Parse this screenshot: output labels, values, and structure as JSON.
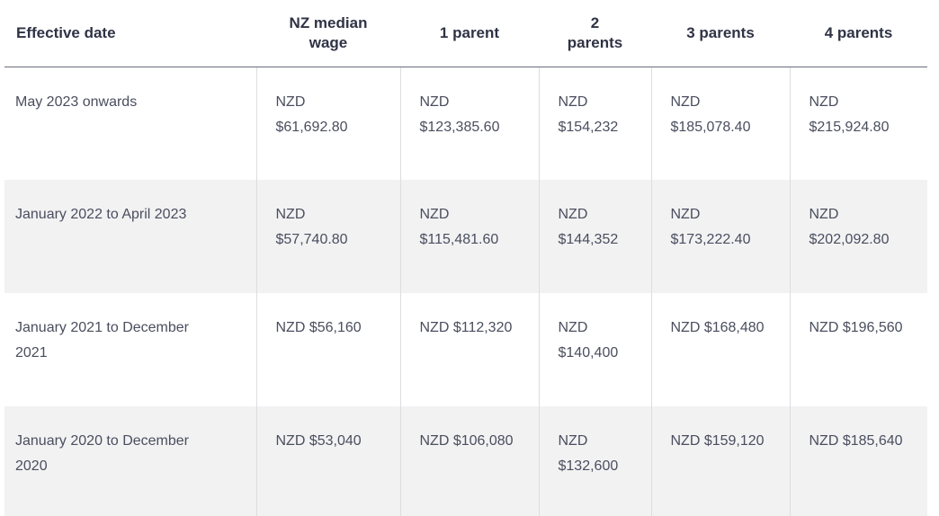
{
  "table": {
    "headers": [
      "Effective date",
      "NZ median wage",
      "1 parent",
      "2 parents",
      "3 parents",
      "4 parents"
    ],
    "header_lines": [
      [
        "Effective date"
      ],
      [
        "NZ median",
        "wage"
      ],
      [
        "1 parent"
      ],
      [
        "2",
        "parents"
      ],
      [
        "3 parents"
      ],
      [
        "4 parents"
      ]
    ],
    "rows": [
      {
        "shaded": false,
        "cells": [
          [
            "May 2023 onwards"
          ],
          [
            "NZD",
            "$61,692.80"
          ],
          [
            "NZD",
            "$123,385.60"
          ],
          [
            "NZD",
            "$154,232"
          ],
          [
            "NZD",
            "$185,078.40"
          ],
          [
            "NZD",
            "$215,924.80"
          ]
        ]
      },
      {
        "shaded": true,
        "cells": [
          [
            "January 2022 to April 2023"
          ],
          [
            "NZD",
            "$57,740.80"
          ],
          [
            "NZD",
            "$115,481.60"
          ],
          [
            "NZD",
            "$144,352"
          ],
          [
            "NZD",
            "$173,222.40"
          ],
          [
            "NZD",
            "$202,092.80"
          ]
        ]
      },
      {
        "shaded": false,
        "cells": [
          [
            "January 2021 to December",
            "2021"
          ],
          [
            "NZD $56,160"
          ],
          [
            "NZD $112,320"
          ],
          [
            "NZD",
            "$140,400"
          ],
          [
            "NZD $168,480"
          ],
          [
            "NZD $196,560"
          ]
        ]
      },
      {
        "shaded": true,
        "cells": [
          [
            "January 2020 to December",
            "2020"
          ],
          [
            "NZD $53,040"
          ],
          [
            "NZD $106,080"
          ],
          [
            "NZD",
            "$132,600"
          ],
          [
            "NZD $159,120"
          ],
          [
            "NZD $185,640"
          ]
        ]
      }
    ]
  },
  "colors": {
    "header_text": "#2f3345",
    "body_text": "#4a4e5e",
    "shaded_row_bg": "#f2f2f3",
    "header_rule": "#6b6f7c",
    "column_divider": "#dcdde2"
  }
}
